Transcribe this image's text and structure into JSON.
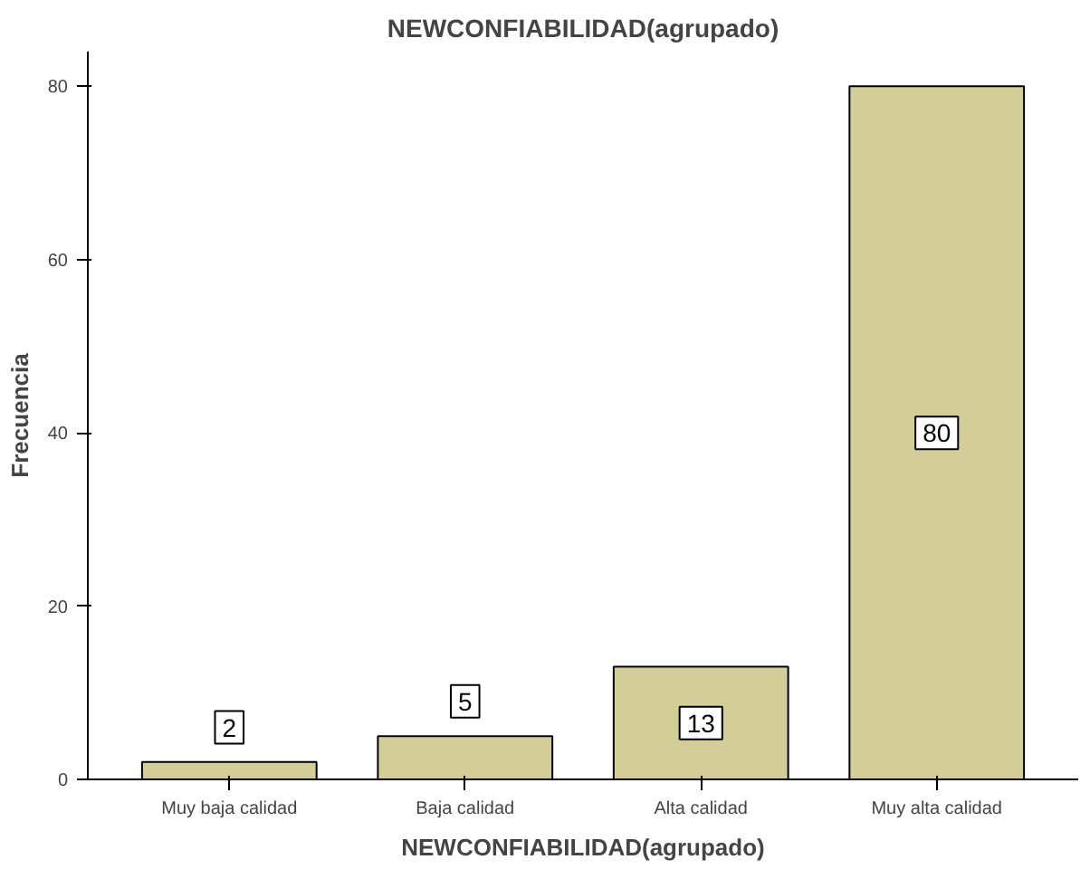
{
  "chart_data": {
    "type": "bar",
    "title": "NEWCONFIABILIDAD(agrupado)",
    "xlabel": "NEWCONFIABILIDAD(agrupado)",
    "ylabel": "Frecuencia",
    "categories": [
      "Muy baja calidad",
      "Baja calidad",
      "Alta calidad",
      "Muy alta calidad"
    ],
    "values": [
      2,
      5,
      13,
      80
    ],
    "color": "#d3ce97",
    "ylim": [
      0,
      84
    ],
    "yticks": [
      0,
      20,
      40,
      60,
      80
    ],
    "grid": false,
    "data_labels": true
  }
}
